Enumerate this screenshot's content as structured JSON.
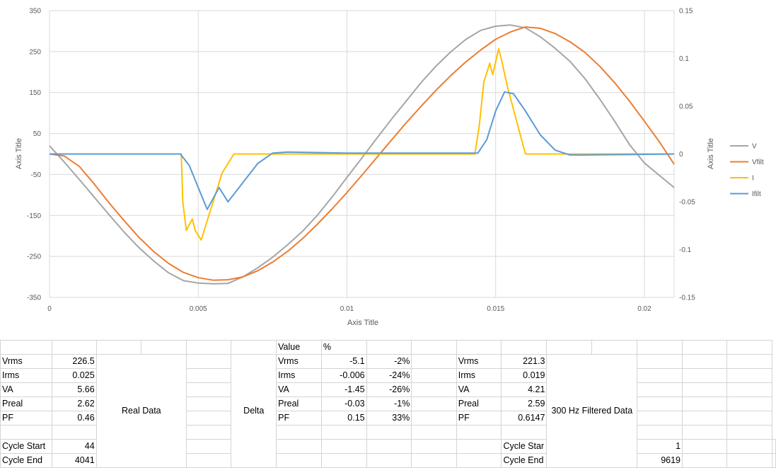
{
  "chart_data": {
    "type": "line",
    "xlabel": "Axis Title",
    "ylabel_left": "Axis Title",
    "ylabel_right": "Axis Title",
    "xlim": [
      0,
      0.021
    ],
    "xticks": [
      0,
      0.005,
      0.01,
      0.015,
      0.02
    ],
    "ylim_left": [
      -350,
      350
    ],
    "yticks_left": [
      -350,
      -250,
      -150,
      -50,
      50,
      150,
      250,
      350
    ],
    "ylim_right": [
      -0.15,
      0.15
    ],
    "yticks_right": [
      -0.15,
      -0.1,
      -0.05,
      0,
      0.05,
      0.1,
      0.15
    ],
    "tick_labels_left": [
      "-350",
      "-250",
      "-150",
      "-50",
      "50",
      "150",
      "250",
      "350"
    ],
    "tick_labels_right": [
      "-0.15",
      "-0.1",
      "-0.05",
      "0",
      "0.05",
      "0.1",
      "0.15"
    ],
    "tick_labels_x": [
      "0",
      "0.005",
      "0.01",
      "0.015",
      "0.02"
    ],
    "grid": true,
    "legend_position": "right",
    "series": [
      {
        "name": "V",
        "axis": "left",
        "color": "#a5a5a5",
        "x": [
          0,
          0.0005,
          0.001,
          0.0015,
          0.002,
          0.0025,
          0.003,
          0.0035,
          0.004,
          0.0045,
          0.005,
          0.0055,
          0.006,
          0.0065,
          0.007,
          0.0075,
          0.008,
          0.0085,
          0.009,
          0.0095,
          0.01,
          0.0105,
          0.011,
          0.0115,
          0.012,
          0.0125,
          0.013,
          0.0135,
          0.014,
          0.0145,
          0.015,
          0.0155,
          0.016,
          0.0165,
          0.017,
          0.0175,
          0.018,
          0.0185,
          0.019,
          0.0195,
          0.02,
          0.0205,
          0.021
        ],
        "values": [
          20,
          -20,
          -62,
          -105,
          -148,
          -190,
          -228,
          -261,
          -290,
          -309,
          -315,
          -317,
          -316,
          -300,
          -278,
          -252,
          -222,
          -189,
          -150,
          -105,
          -57,
          -10,
          38,
          85,
          130,
          175,
          215,
          250,
          280,
          302,
          312,
          315,
          308,
          286,
          258,
          226,
          184,
          134,
          80,
          23,
          -22,
          -52,
          -82
        ]
      },
      {
        "name": "Vfilt",
        "axis": "left",
        "color": "#ed7d31",
        "x": [
          0,
          0.0005,
          0.001,
          0.0015,
          0.002,
          0.0025,
          0.003,
          0.0035,
          0.004,
          0.0045,
          0.005,
          0.0055,
          0.006,
          0.0065,
          0.007,
          0.0075,
          0.008,
          0.0085,
          0.009,
          0.0095,
          0.01,
          0.0105,
          0.011,
          0.0115,
          0.012,
          0.0125,
          0.013,
          0.0135,
          0.014,
          0.0145,
          0.015,
          0.0155,
          0.016,
          0.0165,
          0.017,
          0.0175,
          0.018,
          0.0185,
          0.019,
          0.0195,
          0.02,
          0.0205,
          0.021
        ],
        "values": [
          0,
          -5,
          -30,
          -73,
          -119,
          -162,
          -203,
          -238,
          -267,
          -289,
          -302,
          -308,
          -307,
          -300,
          -285,
          -264,
          -238,
          -207,
          -172,
          -134,
          -94,
          -52,
          -9,
          34,
          77,
          117,
          156,
          192,
          225,
          254,
          280,
          298,
          310,
          307,
          294,
          274,
          248,
          214,
          174,
          129,
          80,
          30,
          -25
        ]
      },
      {
        "name": "I",
        "axis": "right",
        "color": "#ffc000",
        "x": [
          0,
          0.004,
          0.00443,
          0.00448,
          0.0046,
          0.0048,
          0.0049,
          0.0051,
          0.0052,
          0.0055,
          0.0058,
          0.0062,
          0.0065,
          0.008,
          0.01,
          0.0143,
          0.01445,
          0.0146,
          0.0148,
          0.0149,
          0.0151,
          0.0152,
          0.0154,
          0.0157,
          0.016,
          0.018,
          0.021
        ],
        "values": [
          0,
          0,
          0,
          -0.05,
          -0.08,
          -0.068,
          -0.08,
          -0.09,
          -0.08,
          -0.05,
          -0.02,
          0,
          0,
          0,
          0,
          0,
          0.03,
          0.075,
          0.095,
          0.083,
          0.11,
          0.098,
          0.07,
          0.035,
          0,
          0,
          0
        ]
      },
      {
        "name": "Ifilt",
        "axis": "right",
        "color": "#5b9bd5",
        "x": [
          0,
          0.0025,
          0.0044,
          0.0047,
          0.005,
          0.0053,
          0.0057,
          0.006,
          0.0065,
          0.007,
          0.0075,
          0.008,
          0.01,
          0.0144,
          0.0147,
          0.015,
          0.0153,
          0.0156,
          0.016,
          0.0165,
          0.017,
          0.0175,
          0.018,
          0.021
        ],
        "values": [
          0,
          0,
          0,
          -0.012,
          -0.035,
          -0.058,
          -0.035,
          -0.05,
          -0.03,
          -0.01,
          0.001,
          0.002,
          0.001,
          0.001,
          0.015,
          0.045,
          0.065,
          0.063,
          0.045,
          0.02,
          0.004,
          -0.001,
          -0.001,
          0
        ]
      }
    ]
  },
  "spreadsheet": {
    "rows": [
      [
        {
          "v": "Vrms"
        },
        {
          "v": "226.5",
          "a": "r"
        },
        {
          "merge": "Real Data"
        },
        {
          "v": ""
        },
        {
          "merge": "Delta"
        },
        {
          "v": "Vrms"
        },
        {
          "v": "-5.1",
          "a": "r"
        },
        {
          "v": "-2%",
          "a": "r"
        },
        {
          "v": ""
        },
        {
          "v": "Vrms"
        },
        {
          "v": "221.3",
          "a": "r"
        },
        {
          "merge": "300 Hz Filtered Data"
        },
        {
          "v": ""
        },
        {
          "v": ""
        },
        {
          "v": ""
        }
      ],
      [
        {
          "v": "Irms"
        },
        {
          "v": "0.025",
          "a": "r"
        },
        {
          "v": ""
        },
        {
          "v": "Irms"
        },
        {
          "v": "-0.006",
          "a": "r"
        },
        {
          "v": "-24%",
          "a": "r"
        },
        {
          "v": ""
        },
        {
          "v": "Irms"
        },
        {
          "v": "0.019",
          "a": "r"
        },
        {
          "v": ""
        },
        {
          "v": ""
        },
        {
          "v": ""
        }
      ],
      [
        {
          "v": "VA"
        },
        {
          "v": "5.66",
          "a": "r"
        },
        {
          "v": ""
        },
        {
          "v": "VA"
        },
        {
          "v": "-1.45",
          "a": "r"
        },
        {
          "v": "-26%",
          "a": "r"
        },
        {
          "v": ""
        },
        {
          "v": "VA"
        },
        {
          "v": "4.21",
          "a": "r"
        },
        {
          "v": ""
        },
        {
          "v": ""
        },
        {
          "v": ""
        }
      ],
      [
        {
          "v": "Preal"
        },
        {
          "v": "2.62",
          "a": "r"
        },
        {
          "v": ""
        },
        {
          "v": "Preal"
        },
        {
          "v": "-0.03",
          "a": "r"
        },
        {
          "v": "-1%",
          "a": "r"
        },
        {
          "v": ""
        },
        {
          "v": "Preal"
        },
        {
          "v": "2.59",
          "a": "r"
        },
        {
          "v": ""
        },
        {
          "v": ""
        },
        {
          "v": ""
        }
      ],
      [
        {
          "v": "PF"
        },
        {
          "v": "0.46",
          "a": "r"
        },
        {
          "v": ""
        },
        {
          "v": "PF"
        },
        {
          "v": "0.15",
          "a": "r"
        },
        {
          "v": "33%",
          "a": "r"
        },
        {
          "v": ""
        },
        {
          "v": "PF"
        },
        {
          "v": "0.6147",
          "a": "r"
        },
        {
          "v": ""
        },
        {
          "v": ""
        },
        {
          "v": ""
        }
      ],
      [
        {
          "v": ""
        },
        {
          "v": ""
        },
        {
          "v": ""
        },
        {
          "v": ""
        },
        {
          "v": ""
        },
        {
          "v": ""
        },
        {
          "v": ""
        },
        {
          "v": ""
        },
        {
          "v": ""
        },
        {
          "v": ""
        },
        {
          "v": ""
        },
        {
          "v": ""
        }
      ],
      [
        {
          "v": "Cycle Start"
        },
        {
          "v": "44",
          "a": "r"
        },
        {
          "v": ""
        },
        {
          "v": ""
        },
        {
          "v": ""
        },
        {
          "v": ""
        },
        {
          "v": ""
        },
        {
          "v": ""
        },
        {
          "v": "Cycle Star"
        },
        {
          "v": "1",
          "a": "r"
        },
        {
          "v": ""
        },
        {
          "v": ""
        },
        {
          "v": ""
        }
      ],
      [
        {
          "v": "Cycle End"
        },
        {
          "v": "4041",
          "a": "r"
        },
        {
          "v": ""
        },
        {
          "v": ""
        },
        {
          "v": ""
        },
        {
          "v": ""
        },
        {
          "v": ""
        },
        {
          "v": ""
        },
        {
          "v": "Cycle End"
        },
        {
          "v": "9619",
          "a": "r"
        },
        {
          "v": ""
        },
        {
          "v": ""
        },
        {
          "v": ""
        }
      ]
    ],
    "header_row": [
      {
        "v": ""
      },
      {
        "v": ""
      },
      {
        "v": ""
      },
      {
        "v": ""
      },
      {
        "v": ""
      },
      {
        "v": ""
      },
      {
        "v": "Value"
      },
      {
        "v": "%"
      },
      {
        "v": ""
      },
      {
        "v": ""
      },
      {
        "v": ""
      },
      {
        "v": ""
      },
      {
        "v": ""
      },
      {
        "v": ""
      },
      {
        "v": ""
      },
      {
        "v": ""
      },
      {
        "v": ""
      }
    ]
  }
}
